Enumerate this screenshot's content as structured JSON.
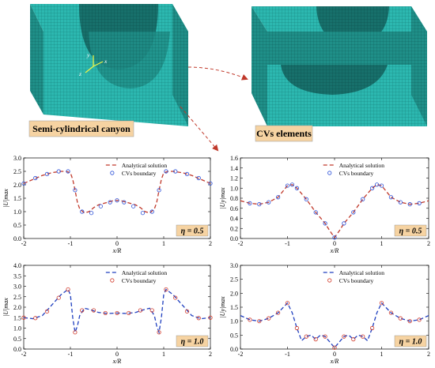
{
  "figure": {
    "model_left_label": "Semi-cylindrical canyon",
    "model_right_label": "CVs elements",
    "axis_glyphs": [
      "y",
      "z",
      "x"
    ],
    "colors": {
      "mesh": "#2cb8b0",
      "mesh_dark": "#1f8f88",
      "mesh_shadow": "#186e69",
      "label_bg": "#f6d3a2",
      "arrow": "#c0392b",
      "analytical_red": "#c0392b",
      "analytical_blue": "#1f3fbf",
      "cv_blue": "#2a4fd8",
      "cv_red": "#d23a2a",
      "eta_bg": "#f6d3a2"
    }
  },
  "chart_data": [
    {
      "type": "line",
      "panel": "top-left",
      "xlabel": "x/R",
      "ylabel": "|U|max",
      "xlim": [
        -2,
        2
      ],
      "ylim": [
        0,
        3.0
      ],
      "xticks": [
        -2,
        -1,
        0,
        1,
        2
      ],
      "yticks": [
        0.0,
        0.5,
        1.0,
        1.5,
        2.0,
        2.5,
        3.0
      ],
      "tick_labels_y": [
        "0.0",
        "0.5",
        "1.0",
        "1.5",
        "2.0",
        "2.5",
        "3.0"
      ],
      "tick_labels_x": [
        "-2",
        "-1",
        "0",
        "1",
        "2"
      ],
      "annotation": "η = 0.5",
      "legend": [
        "Analytical solution",
        "CVs boundary"
      ],
      "series": [
        {
          "name": "Analytical solution",
          "style": "dashed",
          "color": "#c0392b",
          "x": [
            -2.0,
            -1.8,
            -1.6,
            -1.4,
            -1.2,
            -1.1,
            -1.0,
            -0.95,
            -0.9,
            -0.85,
            -0.8,
            -0.7,
            -0.6,
            -0.5,
            -0.4,
            -0.3,
            -0.2,
            -0.1,
            0.0,
            0.1,
            0.2,
            0.3,
            0.4,
            0.5,
            0.6,
            0.7,
            0.8,
            0.85,
            0.9,
            0.95,
            1.0,
            1.1,
            1.2,
            1.4,
            1.6,
            1.8,
            2.0
          ],
          "y": [
            2.05,
            2.2,
            2.35,
            2.45,
            2.5,
            2.5,
            2.45,
            2.2,
            1.8,
            1.35,
            1.1,
            0.95,
            1.0,
            1.15,
            1.25,
            1.3,
            1.35,
            1.4,
            1.42,
            1.4,
            1.35,
            1.3,
            1.25,
            1.15,
            1.0,
            0.95,
            1.1,
            1.35,
            1.8,
            2.2,
            2.45,
            2.5,
            2.5,
            2.45,
            2.35,
            2.2,
            2.05
          ]
        },
        {
          "name": "CVs boundary",
          "style": "circle",
          "color": "#2a4fd8",
          "x": [
            -2.0,
            -1.75,
            -1.5,
            -1.25,
            -1.05,
            -0.9,
            -0.75,
            -0.55,
            -0.35,
            -0.15,
            0.0,
            0.15,
            0.35,
            0.55,
            0.75,
            0.9,
            1.05,
            1.25,
            1.5,
            1.75,
            2.0
          ],
          "y": [
            2.05,
            2.25,
            2.4,
            2.5,
            2.5,
            1.8,
            1.0,
            0.95,
            1.2,
            1.35,
            1.42,
            1.35,
            1.2,
            0.95,
            1.0,
            1.8,
            2.5,
            2.5,
            2.4,
            2.25,
            2.05
          ]
        }
      ]
    },
    {
      "type": "line",
      "panel": "top-right",
      "xlabel": "x/R",
      "ylabel": "|Uy|max",
      "xlim": [
        -2,
        2
      ],
      "ylim": [
        0,
        1.6
      ],
      "xticks": [
        -2,
        -1,
        0,
        1,
        2
      ],
      "yticks": [
        0.0,
        0.2,
        0.4,
        0.6,
        0.8,
        1.0,
        1.2,
        1.4,
        1.6
      ],
      "tick_labels_y": [
        "0.0",
        "0.2",
        "0.4",
        "0.6",
        "0.8",
        "1.0",
        "1.2",
        "1.4",
        "1.6"
      ],
      "tick_labels_x": [
        "-2",
        "-1",
        "0",
        "1",
        "2"
      ],
      "annotation": "η = 0.5",
      "legend": [
        "Analytical solution",
        "CVs boundary"
      ],
      "series": [
        {
          "name": "Analytical solution",
          "style": "dashed",
          "color": "#c0392b",
          "x": [
            -2.0,
            -1.8,
            -1.6,
            -1.4,
            -1.2,
            -1.0,
            -0.9,
            -0.8,
            -0.6,
            -0.4,
            -0.2,
            -0.1,
            0.0,
            0.1,
            0.2,
            0.4,
            0.6,
            0.8,
            0.9,
            1.0,
            1.2,
            1.4,
            1.6,
            1.8,
            2.0
          ],
          "y": [
            0.75,
            0.7,
            0.68,
            0.72,
            0.82,
            1.05,
            1.07,
            1.0,
            0.78,
            0.52,
            0.3,
            0.15,
            0.02,
            0.15,
            0.3,
            0.52,
            0.78,
            1.0,
            1.07,
            1.05,
            0.82,
            0.72,
            0.68,
            0.7,
            0.75
          ]
        },
        {
          "name": "CVs boundary",
          "style": "circle",
          "color": "#2a4fd8",
          "x": [
            -1.8,
            -1.6,
            -1.4,
            -1.2,
            -1.0,
            -0.9,
            -0.8,
            -0.6,
            -0.4,
            -0.2,
            0.0,
            0.2,
            0.4,
            0.6,
            0.8,
            0.9,
            1.0,
            1.2,
            1.4,
            1.6,
            1.8
          ],
          "y": [
            0.7,
            0.68,
            0.72,
            0.82,
            1.05,
            1.07,
            1.0,
            0.78,
            0.52,
            0.3,
            0.02,
            0.3,
            0.52,
            0.78,
            1.0,
            1.07,
            1.05,
            0.82,
            0.72,
            0.68,
            0.7
          ]
        }
      ]
    },
    {
      "type": "line",
      "panel": "bottom-left",
      "xlabel": "x/R",
      "ylabel": "|U|max",
      "xlim": [
        -2,
        2
      ],
      "ylim": [
        0,
        4.0
      ],
      "xticks": [
        -2,
        -1,
        0,
        1,
        2
      ],
      "yticks": [
        0.0,
        0.5,
        1.0,
        1.5,
        2.0,
        2.5,
        3.0,
        3.5,
        4.0
      ],
      "tick_labels_y": [
        "0.0",
        "0.5",
        "1.0",
        "1.5",
        "2.0",
        "2.5",
        "3.0",
        "3.5",
        "4.0"
      ],
      "tick_labels_x": [
        "-2",
        "-1",
        "0",
        "1",
        "2"
      ],
      "annotation": "η = 1.0",
      "legend": [
        "Analytical solution",
        "CVs boundary"
      ],
      "series": [
        {
          "name": "Analytical solution",
          "style": "dashed",
          "color": "#1f3fbf",
          "x": [
            -2.0,
            -1.8,
            -1.6,
            -1.4,
            -1.2,
            -1.05,
            -1.0,
            -0.95,
            -0.9,
            -0.85,
            -0.8,
            -0.7,
            -0.6,
            -0.4,
            -0.2,
            0.0,
            0.2,
            0.4,
            0.6,
            0.7,
            0.8,
            0.85,
            0.9,
            0.95,
            1.0,
            1.05,
            1.2,
            1.4,
            1.6,
            1.8,
            2.0
          ],
          "y": [
            1.5,
            1.45,
            1.6,
            2.1,
            2.6,
            2.85,
            2.6,
            1.5,
            0.8,
            1.1,
            1.6,
            1.95,
            1.9,
            1.75,
            1.7,
            1.72,
            1.7,
            1.75,
            1.9,
            1.95,
            1.6,
            1.1,
            0.8,
            1.5,
            2.6,
            2.85,
            2.6,
            2.1,
            1.6,
            1.45,
            1.5
          ]
        },
        {
          "name": "CVs boundary",
          "style": "circle",
          "color": "#d23a2a",
          "x": [
            -2.0,
            -1.75,
            -1.5,
            -1.25,
            -1.05,
            -0.9,
            -0.75,
            -0.5,
            -0.25,
            0.0,
            0.25,
            0.5,
            0.75,
            0.9,
            1.05,
            1.25,
            1.5,
            1.75,
            2.0
          ],
          "y": [
            1.5,
            1.48,
            1.8,
            2.45,
            2.85,
            0.8,
            1.85,
            1.85,
            1.72,
            1.72,
            1.72,
            1.85,
            1.85,
            0.8,
            2.85,
            2.45,
            1.8,
            1.48,
            1.5
          ]
        }
      ]
    },
    {
      "type": "line",
      "panel": "bottom-right",
      "xlabel": "x/R",
      "ylabel": "|Uy|max",
      "xlim": [
        -2,
        2
      ],
      "ylim": [
        0,
        3.0
      ],
      "xticks": [
        -2,
        -1,
        0,
        1,
        2
      ],
      "yticks": [
        0.0,
        0.5,
        1.0,
        1.5,
        2.0,
        2.5,
        3.0
      ],
      "tick_labels_y": [
        "0.0",
        "0.5",
        "1.0",
        "1.5",
        "2.0",
        "2.5",
        "3.0"
      ],
      "tick_labels_x": [
        "-2",
        "-1",
        "0",
        "1",
        "2"
      ],
      "annotation": "η = 1.0",
      "legend": [
        "Analytical solution",
        "CVs boundary"
      ],
      "series": [
        {
          "name": "Analytical solution",
          "style": "dashed",
          "color": "#1f3fbf",
          "x": [
            -2.0,
            -1.8,
            -1.6,
            -1.4,
            -1.2,
            -1.0,
            -0.9,
            -0.8,
            -0.7,
            -0.6,
            -0.5,
            -0.4,
            -0.3,
            -0.2,
            -0.1,
            0.0,
            0.1,
            0.2,
            0.3,
            0.4,
            0.5,
            0.6,
            0.7,
            0.8,
            0.9,
            1.0,
            1.2,
            1.4,
            1.6,
            1.8,
            2.0
          ],
          "y": [
            1.2,
            1.05,
            1.0,
            1.1,
            1.3,
            1.65,
            1.3,
            0.75,
            0.3,
            0.45,
            0.5,
            0.35,
            0.5,
            0.45,
            0.25,
            0.05,
            0.25,
            0.45,
            0.5,
            0.35,
            0.5,
            0.45,
            0.3,
            0.75,
            1.3,
            1.65,
            1.3,
            1.1,
            1.0,
            1.05,
            1.2
          ]
        },
        {
          "name": "CVs boundary",
          "style": "circle",
          "color": "#d23a2a",
          "x": [
            -1.8,
            -1.6,
            -1.4,
            -1.2,
            -1.0,
            -0.8,
            -0.6,
            -0.4,
            -0.2,
            0.0,
            0.2,
            0.4,
            0.6,
            0.8,
            1.0,
            1.2,
            1.4,
            1.6,
            1.8
          ],
          "y": [
            1.05,
            1.0,
            1.1,
            1.3,
            1.65,
            0.75,
            0.45,
            0.35,
            0.45,
            0.05,
            0.45,
            0.35,
            0.45,
            0.75,
            1.65,
            1.3,
            1.1,
            1.0,
            1.05
          ]
        }
      ]
    }
  ]
}
